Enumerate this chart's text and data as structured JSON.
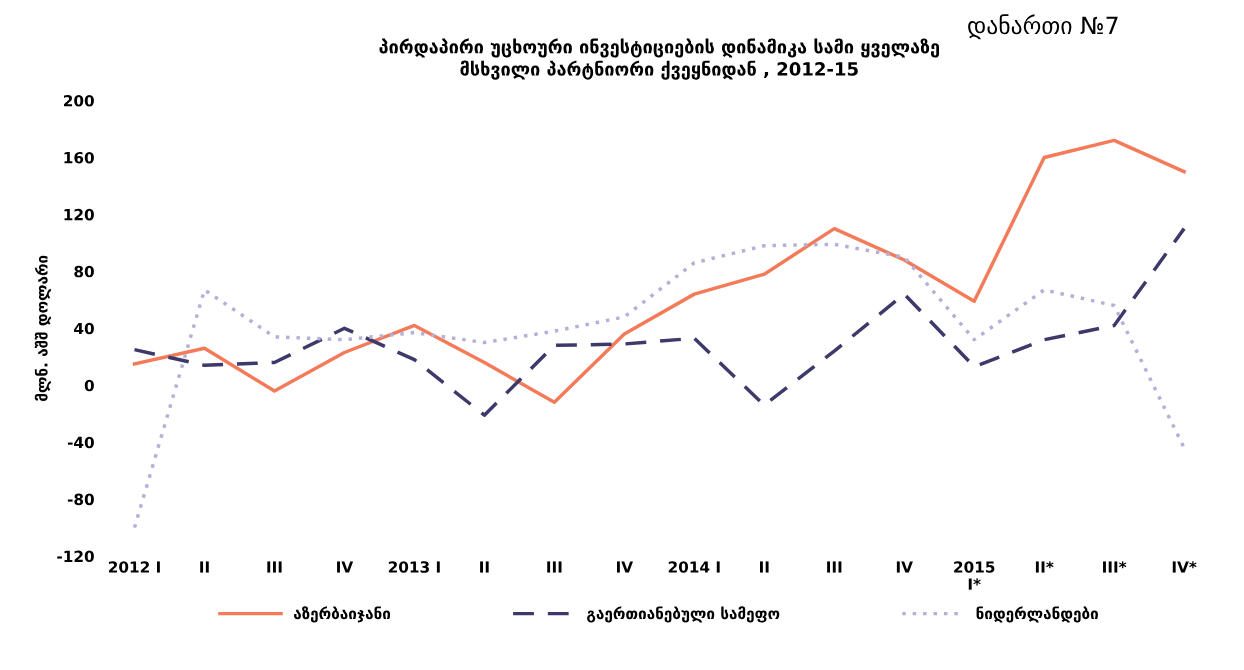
{
  "chart_data": {
    "type": "line",
    "title": "პირდაპირი უცხოური ინვესტიციების დინამიკა სამი ყველაზე\nმსხვილი პარტნიორი ქვეყნიდან , 2012-15",
    "ylabel": "მლნ. აშშ დოლარი",
    "annotations": [
      "დანართი №7"
    ],
    "categories": [
      "2012 I",
      "II",
      "III",
      "IV",
      "2013 I",
      "II",
      "III",
      "IV",
      "2014 I",
      "II",
      "III",
      "IV",
      "2015\nI*",
      "II*",
      "III*",
      "IV*"
    ],
    "series": [
      {
        "name": "აზერბაიჯანი",
        "color": "#f47b5a",
        "line_style": "solid",
        "values": [
          15,
          26,
          -4,
          23,
          42,
          16,
          -12,
          36,
          64,
          78,
          110,
          88,
          59,
          160,
          172,
          150
        ]
      },
      {
        "name": "გაერთიანებული სამეფო",
        "color": "#3d3a6b",
        "line_style": "dashed",
        "values": [
          25,
          14,
          16,
          40,
          18,
          -21,
          28,
          29,
          33,
          -14,
          24,
          64,
          13,
          32,
          42,
          110
        ]
      },
      {
        "name": "ნიდერლანდები",
        "color": "#b4b0d8",
        "line_style": "dotted",
        "values": [
          -100,
          67,
          34,
          32,
          37,
          30,
          38,
          48,
          86,
          98,
          99,
          90,
          32,
          67,
          56,
          -44
        ]
      }
    ],
    "ylim": [
      -120,
      200
    ],
    "yticks": [
      -120,
      -80,
      -40,
      0,
      40,
      80,
      120,
      160,
      200
    ],
    "grid": false,
    "legend": "bottom",
    "marker": "none"
  }
}
